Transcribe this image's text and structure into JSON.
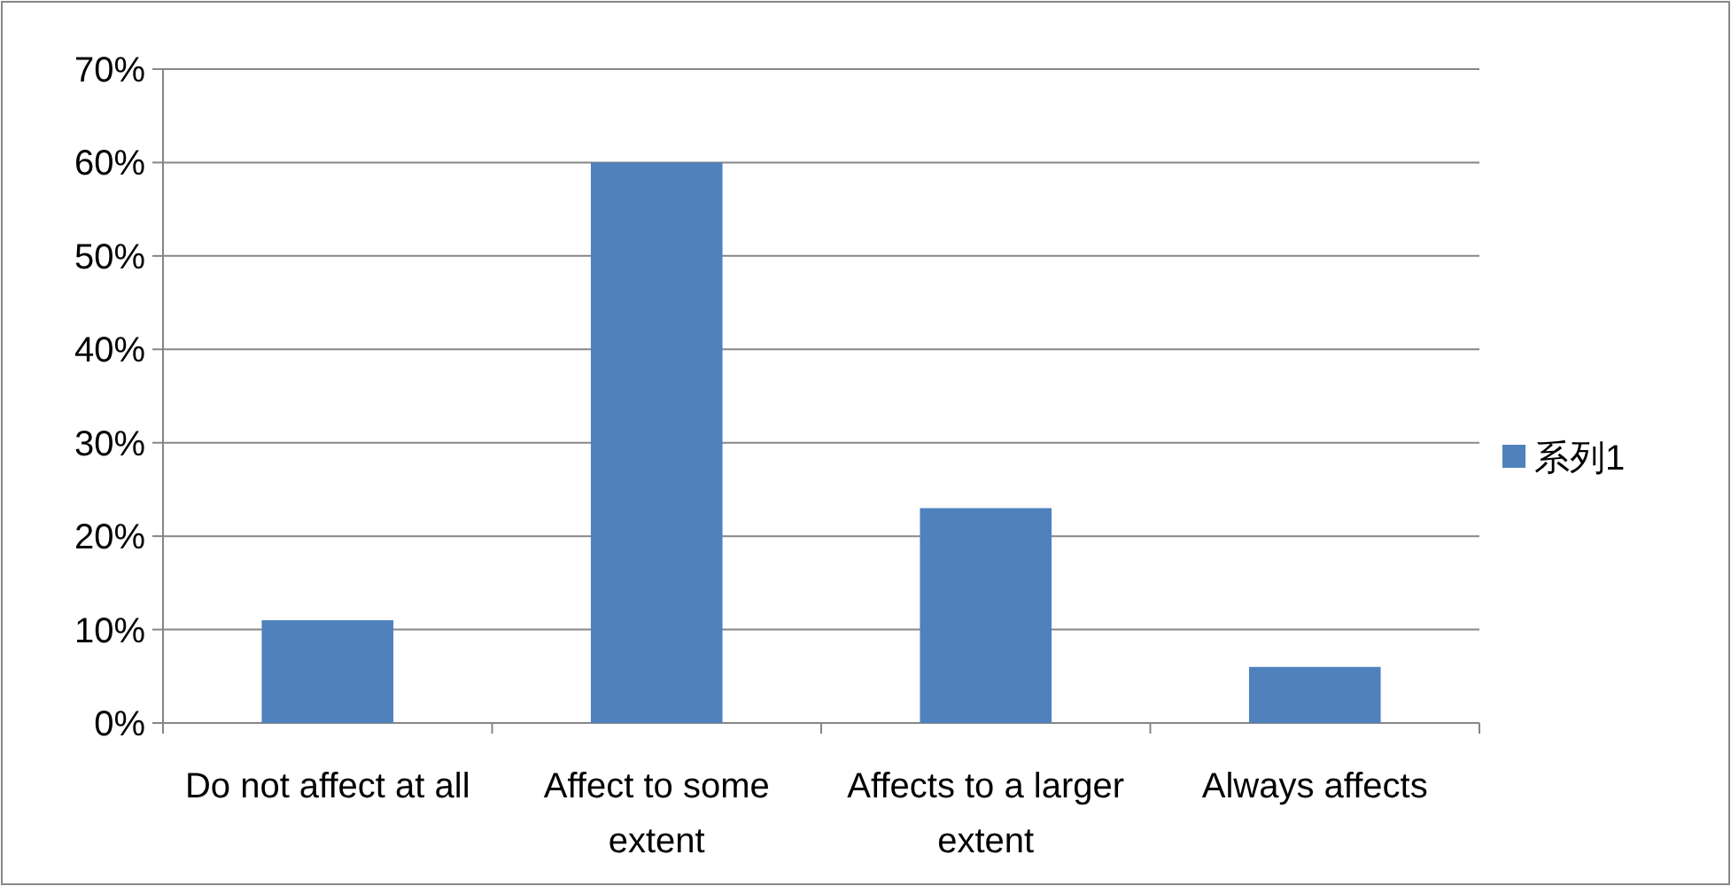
{
  "chart_data": {
    "type": "bar",
    "categories": [
      "Do not affect at all",
      "Affect to some extent",
      "Affects to a larger extent",
      "Always affects"
    ],
    "series": [
      {
        "name": "系列1",
        "color": "#4f81bd",
        "values": [
          11,
          60,
          23,
          6
        ]
      }
    ],
    "ylim": [
      0,
      70
    ],
    "yticks": [
      {
        "value": 0,
        "label": "0%"
      },
      {
        "value": 10,
        "label": "10%"
      },
      {
        "value": 20,
        "label": "20%"
      },
      {
        "value": 30,
        "label": "30%"
      },
      {
        "value": 40,
        "label": "40%"
      },
      {
        "value": 50,
        "label": "50%"
      },
      {
        "value": 60,
        "label": "60%"
      },
      {
        "value": 70,
        "label": "70%"
      }
    ],
    "grid": "y",
    "legend": "right"
  }
}
